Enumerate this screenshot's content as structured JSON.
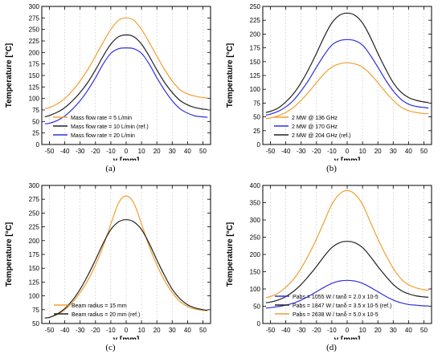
{
  "chart_data": [
    {
      "panel": "(a)",
      "type": "line",
      "xlabel": "y [mm]",
      "ylabel": "Temperature [°C]",
      "xlim": [
        -55,
        55
      ],
      "ylim": [
        0,
        300
      ],
      "xticks": [
        -50,
        -40,
        -30,
        -20,
        -10,
        0,
        10,
        20,
        30,
        40,
        50
      ],
      "yticks": [
        0,
        25,
        50,
        75,
        100,
        125,
        150,
        175,
        200,
        225,
        250,
        275,
        300
      ],
      "grid": "x-dashed",
      "legend_position": "bottom-left",
      "series": [
        {
          "name": "Mass flow rate = 5 L/min",
          "color": "#f0a030",
          "x": [
            -53,
            -50,
            -45,
            -40,
            -35,
            -30,
            -25,
            -20,
            -15,
            -10,
            -5,
            0,
            5,
            10,
            15,
            20,
            25,
            30,
            35,
            40,
            45,
            50,
            53
          ],
          "y": [
            78,
            80,
            88,
            100,
            117,
            138,
            163,
            192,
            222,
            250,
            270,
            275,
            270,
            250,
            222,
            192,
            163,
            138,
            119,
            110,
            105,
            102,
            101
          ]
        },
        {
          "name": "Mass flow rate = 10 L/min (ref.)",
          "color": "#222222",
          "x": [
            -53,
            -50,
            -45,
            -40,
            -35,
            -30,
            -25,
            -20,
            -15,
            -10,
            -5,
            0,
            5,
            10,
            15,
            20,
            25,
            30,
            35,
            40,
            45,
            50,
            53
          ],
          "y": [
            60,
            63,
            70,
            80,
            95,
            113,
            135,
            162,
            192,
            218,
            234,
            238,
            234,
            218,
            192,
            162,
            135,
            113,
            96,
            86,
            80,
            77,
            76
          ]
        },
        {
          "name": "Mass flow rate = 20 L/min",
          "color": "#3030e0",
          "x": [
            -53,
            -50,
            -45,
            -40,
            -35,
            -30,
            -25,
            -20,
            -15,
            -10,
            -5,
            0,
            5,
            10,
            15,
            20,
            25,
            30,
            35,
            40,
            45,
            50,
            53
          ],
          "y": [
            45,
            46,
            52,
            62,
            77,
            95,
            118,
            145,
            175,
            198,
            208,
            210,
            208,
            198,
            175,
            145,
            118,
            95,
            78,
            68,
            62,
            60,
            59
          ]
        }
      ]
    },
    {
      "panel": "(b)",
      "type": "line",
      "xlabel": "y [mm]",
      "ylabel": "Temperature [°C]",
      "xlim": [
        -55,
        55
      ],
      "ylim": [
        0,
        250
      ],
      "xticks": [
        -50,
        -40,
        -30,
        -20,
        -10,
        0,
        10,
        20,
        30,
        40,
        50
      ],
      "yticks": [
        0,
        25,
        50,
        75,
        100,
        125,
        150,
        175,
        200,
        225,
        250
      ],
      "grid": "x-dashed",
      "legend_position": "bottom-left",
      "series": [
        {
          "name": "2 MW @ 136 GHz",
          "color": "#f0a030",
          "x": [
            -53,
            -50,
            -45,
            -40,
            -35,
            -30,
            -25,
            -20,
            -15,
            -10,
            -5,
            0,
            5,
            10,
            15,
            20,
            25,
            30,
            35,
            40,
            45,
            50,
            53
          ],
          "y": [
            47,
            48,
            52,
            58,
            67,
            80,
            95,
            112,
            128,
            140,
            146,
            148,
            146,
            140,
            128,
            112,
            95,
            80,
            68,
            61,
            58,
            56,
            56
          ]
        },
        {
          "name": "2 MW @ 170 GHz",
          "color": "#3030e0",
          "x": [
            -53,
            -50,
            -45,
            -40,
            -35,
            -30,
            -25,
            -20,
            -15,
            -10,
            -5,
            0,
            5,
            10,
            15,
            20,
            25,
            30,
            35,
            40,
            45,
            50,
            53
          ],
          "y": [
            53,
            55,
            60,
            68,
            80,
            97,
            117,
            140,
            162,
            180,
            188,
            190,
            188,
            180,
            162,
            140,
            117,
            97,
            82,
            73,
            69,
            67,
            66
          ]
        },
        {
          "name": "2 MW @ 204 GHz (ref.)",
          "color": "#222222",
          "x": [
            -53,
            -50,
            -45,
            -40,
            -35,
            -30,
            -25,
            -20,
            -15,
            -10,
            -5,
            0,
            5,
            10,
            15,
            20,
            25,
            30,
            35,
            40,
            45,
            50,
            53
          ],
          "y": [
            58,
            60,
            66,
            77,
            92,
            112,
            137,
            165,
            195,
            220,
            234,
            238,
            234,
            220,
            195,
            165,
            137,
            112,
            95,
            85,
            80,
            77,
            76
          ]
        }
      ]
    },
    {
      "panel": "(c)",
      "type": "line",
      "xlabel": "y [mm]",
      "ylabel": "Temperature [°C]",
      "xlim": [
        -55,
        55
      ],
      "ylim": [
        50,
        300
      ],
      "xticks": [
        -50,
        -40,
        -30,
        -20,
        -10,
        0,
        10,
        20,
        30,
        40,
        50
      ],
      "yticks": [
        50,
        75,
        100,
        125,
        150,
        175,
        200,
        225,
        250,
        275,
        300
      ],
      "grid": "x-dashed",
      "legend_position": "bottom-right",
      "series": [
        {
          "name": "Beam radius = 15 mm",
          "color": "#f0a030",
          "x": [
            -53,
            -50,
            -45,
            -40,
            -35,
            -30,
            -25,
            -20,
            -15,
            -10,
            -5,
            0,
            5,
            10,
            15,
            20,
            25,
            30,
            35,
            40,
            45,
            50,
            53
          ],
          "y": [
            60,
            61,
            66,
            75,
            88,
            106,
            128,
            156,
            190,
            230,
            268,
            281,
            268,
            230,
            190,
            156,
            128,
            106,
            90,
            81,
            76,
            74,
            73
          ]
        },
        {
          "name": "Beam radius = 20 mm (ref.)",
          "color": "#222222",
          "x": [
            -53,
            -50,
            -45,
            -40,
            -35,
            -30,
            -25,
            -20,
            -15,
            -10,
            -5,
            0,
            5,
            10,
            15,
            20,
            25,
            30,
            35,
            40,
            45,
            50,
            53
          ],
          "y": [
            60,
            61,
            67,
            77,
            92,
            112,
            137,
            165,
            195,
            220,
            234,
            238,
            234,
            220,
            195,
            165,
            137,
            112,
            95,
            84,
            78,
            75,
            74
          ]
        }
      ]
    },
    {
      "panel": "(d)",
      "type": "line",
      "xlabel": "y [mm]",
      "ylabel": "Temperature [°C]",
      "xlim": [
        -55,
        55
      ],
      "ylim": [
        0,
        400
      ],
      "xticks": [
        -50,
        -40,
        -30,
        -20,
        -10,
        0,
        10,
        20,
        30,
        40,
        50
      ],
      "yticks": [
        0,
        50,
        100,
        150,
        200,
        250,
        300,
        350,
        400
      ],
      "grid": "x-dashed",
      "legend_position": "bottom-right",
      "series": [
        {
          "name": "Pabs = 1055 W / tanδ = 2.0 x 10-5",
          "color": "#3030e0",
          "x": [
            -53,
            -50,
            -45,
            -40,
            -35,
            -30,
            -25,
            -20,
            -15,
            -10,
            -5,
            0,
            5,
            10,
            15,
            20,
            25,
            30,
            35,
            40,
            45,
            50,
            53
          ],
          "y": [
            45,
            46,
            49,
            53,
            59,
            68,
            79,
            92,
            105,
            116,
            123,
            125,
            123,
            116,
            105,
            92,
            79,
            68,
            60,
            55,
            53,
            51,
            51
          ]
        },
        {
          "name": "Pabs = 1847 W / tanδ = 3.5 x 10-5 (ref.)",
          "color": "#222222",
          "x": [
            -53,
            -50,
            -45,
            -40,
            -35,
            -30,
            -25,
            -20,
            -15,
            -10,
            -5,
            0,
            5,
            10,
            15,
            20,
            25,
            30,
            35,
            40,
            45,
            50,
            53
          ],
          "y": [
            60,
            62,
            68,
            78,
            93,
            113,
            138,
            165,
            195,
            220,
            234,
            238,
            234,
            220,
            195,
            165,
            138,
            113,
            96,
            86,
            80,
            77,
            76
          ]
        },
        {
          "name": "Pabs = 2638 W / tanδ = 5.0 x 10-5",
          "color": "#f0a030",
          "x": [
            -53,
            -50,
            -45,
            -40,
            -35,
            -30,
            -25,
            -20,
            -15,
            -10,
            -5,
            0,
            5,
            10,
            15,
            20,
            25,
            30,
            35,
            40,
            45,
            50,
            53
          ],
          "y": [
            75,
            78,
            88,
            105,
            128,
            160,
            200,
            245,
            295,
            345,
            375,
            385,
            375,
            345,
            295,
            245,
            200,
            160,
            130,
            112,
            103,
            98,
            96
          ]
        }
      ]
    }
  ]
}
